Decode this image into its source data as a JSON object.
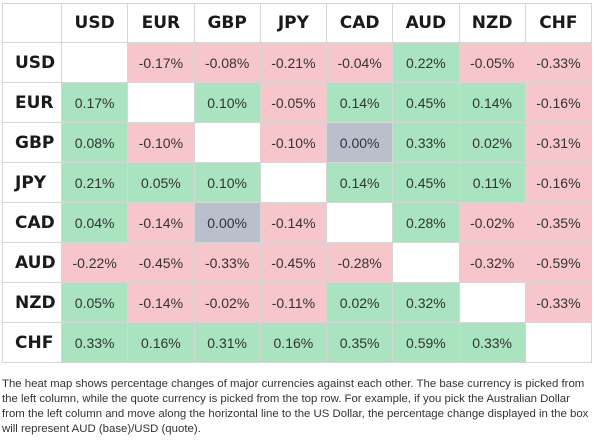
{
  "heatmap": {
    "columns": [
      "USD",
      "EUR",
      "GBP",
      "JPY",
      "CAD",
      "AUD",
      "NZD",
      "CHF"
    ],
    "rows": [
      {
        "base": "USD",
        "cells": [
          "",
          "-0.17%",
          "-0.08%",
          "-0.21%",
          "-0.04%",
          "0.22%",
          "-0.05%",
          "-0.33%"
        ]
      },
      {
        "base": "EUR",
        "cells": [
          "0.17%",
          "",
          "0.10%",
          "-0.05%",
          "0.14%",
          "0.45%",
          "0.14%",
          "-0.16%"
        ]
      },
      {
        "base": "GBP",
        "cells": [
          "0.08%",
          "-0.10%",
          "",
          "-0.10%",
          "0.00%",
          "0.33%",
          "0.02%",
          "-0.31%"
        ]
      },
      {
        "base": "JPY",
        "cells": [
          "0.21%",
          "0.05%",
          "0.10%",
          "",
          "0.14%",
          "0.45%",
          "0.11%",
          "-0.16%"
        ]
      },
      {
        "base": "CAD",
        "cells": [
          "0.04%",
          "-0.14%",
          "0.00%",
          "-0.14%",
          "",
          "0.28%",
          "-0.02%",
          "-0.35%"
        ]
      },
      {
        "base": "AUD",
        "cells": [
          "-0.22%",
          "-0.45%",
          "-0.33%",
          "-0.45%",
          "-0.28%",
          "",
          "-0.32%",
          "-0.59%"
        ]
      },
      {
        "base": "NZD",
        "cells": [
          "0.05%",
          "-0.14%",
          "-0.02%",
          "-0.11%",
          "0.02%",
          "0.32%",
          "",
          "-0.33%"
        ]
      },
      {
        "base": "CHF",
        "cells": [
          "0.33%",
          "0.16%",
          "0.31%",
          "0.16%",
          "0.35%",
          "0.59%",
          "0.33%",
          ""
        ]
      }
    ]
  },
  "colors": {
    "positive": "#a9e3c0",
    "negative": "#f7c6cb",
    "neutral": "#b9c0cc",
    "empty": "#ffffff"
  },
  "caption": "The heat map shows percentage changes of major currencies against each other. The base currency is picked from the left column, while the quote currency is picked from the top row. For example, if you pick the Australian Dollar from the left column and move along the horizontal line to the US Dollar, the percentage change displayed in the box will represent AUD (base)/USD (quote)."
}
